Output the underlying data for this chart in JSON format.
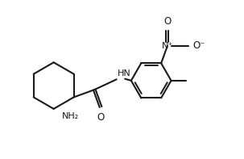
{
  "bg_color": "#ffffff",
  "line_color": "#1a1a1a",
  "line_width": 1.5,
  "figsize": [
    3.03,
    1.97
  ],
  "dpi": 100,
  "xlim": [
    0,
    10
  ],
  "ylim": [
    0,
    6.5
  ]
}
